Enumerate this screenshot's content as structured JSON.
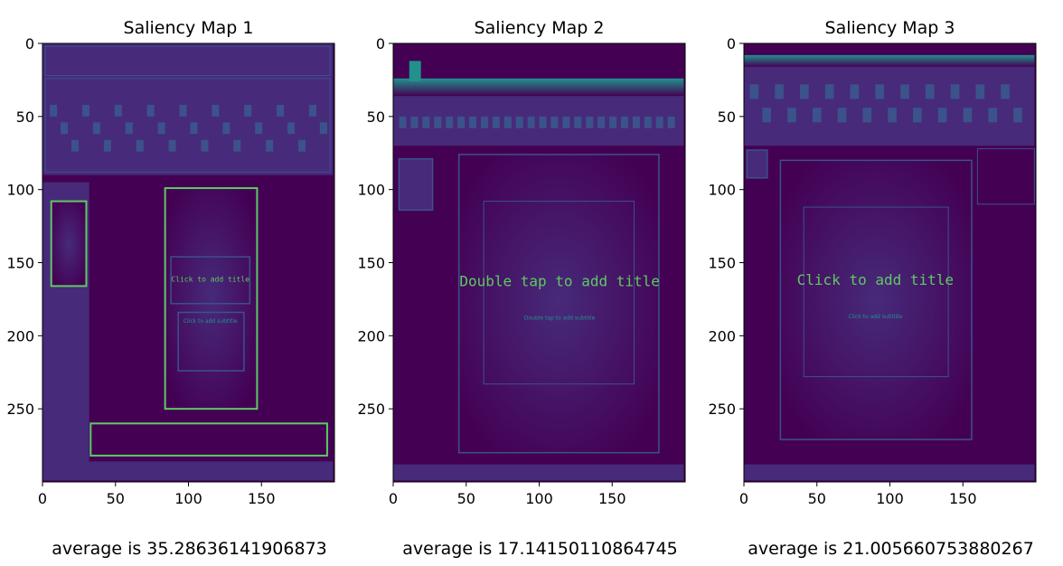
{
  "figure": {
    "colormap": "viridis",
    "colors": {
      "bg_dark": "#440154",
      "bg_mid": "#472a7a",
      "frame": "#3b528b",
      "bright": "#21918c",
      "highlight": "#5ec962",
      "peak": "#fde725"
    }
  },
  "chart_data": [
    {
      "type": "heatmap",
      "title": "Saliency Map 1",
      "xlabel": "",
      "ylabel": "",
      "xlim": [
        0,
        199
      ],
      "ylim": [
        299,
        0
      ],
      "xticks": [
        0,
        50,
        100,
        150
      ],
      "yticks": [
        0,
        50,
        100,
        150,
        200,
        250
      ],
      "grid": false,
      "caption": "average is 35.28636141906873",
      "average": 35.28636141906873,
      "inner_text": [
        "Click to add title",
        "Click to add subtitle"
      ]
    },
    {
      "type": "heatmap",
      "title": "Saliency Map 2",
      "xlabel": "",
      "ylabel": "",
      "xlim": [
        0,
        199
      ],
      "ylim": [
        299,
        0
      ],
      "xticks": [
        0,
        50,
        100,
        150
      ],
      "yticks": [
        0,
        50,
        100,
        150,
        200,
        250
      ],
      "grid": false,
      "caption": "average is 17.14150110864745",
      "average": 17.14150110864745,
      "inner_text": [
        "Double tap to add title",
        "Double tap to add subtitle"
      ]
    },
    {
      "type": "heatmap",
      "title": "Saliency Map 3",
      "xlabel": "",
      "ylabel": "",
      "xlim": [
        0,
        199
      ],
      "ylim": [
        299,
        0
      ],
      "xticks": [
        0,
        50,
        100,
        150
      ],
      "yticks": [
        0,
        50,
        100,
        150,
        200,
        250
      ],
      "grid": false,
      "caption": "average is 21.005660753880267",
      "average": 21.005660753880267,
      "inner_text": [
        "Click to add title",
        "Click to add subtitle"
      ]
    }
  ]
}
